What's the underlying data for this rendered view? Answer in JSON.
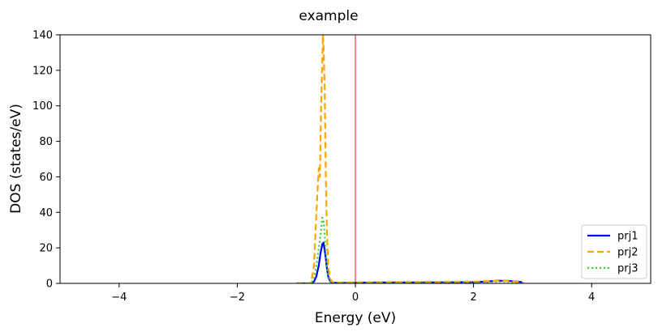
{
  "chart_data": {
    "type": "line",
    "title": "example",
    "xlabel": "Energy (eV)",
    "ylabel": "DOS (states/eV)",
    "xlim": [
      -5,
      5
    ],
    "ylim": [
      0,
      140
    ],
    "xticks": [
      -4,
      -2,
      0,
      2,
      4
    ],
    "xtick_labels": [
      "−4",
      "−2",
      "0",
      "2",
      "4"
    ],
    "yticks": [
      0,
      20,
      40,
      60,
      80,
      100,
      120,
      140
    ],
    "ytick_labels": [
      "0",
      "20",
      "40",
      "60",
      "80",
      "100",
      "120",
      "140"
    ],
    "grid": false,
    "legend_position": "bottom-right",
    "vline": {
      "x": 0,
      "color": "#e41a1c"
    },
    "series": [
      {
        "name": "prj1",
        "color": "#0000ff",
        "style": "solid",
        "x": [
          -1.0,
          -0.75,
          -0.7,
          -0.66,
          -0.62,
          -0.59,
          -0.56,
          -0.54,
          -0.52,
          -0.5,
          -0.48,
          -0.46,
          -0.43,
          -0.4,
          -0.35,
          -0.2,
          0.0,
          0.5,
          1.0,
          1.5,
          2.0,
          2.2,
          2.4,
          2.6,
          2.8,
          2.85
        ],
        "y": [
          0,
          0,
          1,
          4,
          10,
          17,
          22,
          23,
          19,
          14,
          8,
          4,
          1.5,
          0.5,
          0.3,
          0.3,
          0.4,
          0.5,
          0.5,
          0.6,
          0.7,
          1.0,
          1.5,
          1.4,
          0.8,
          0
        ]
      },
      {
        "name": "prj2",
        "color": "#ffa500",
        "style": "dashed",
        "x": [
          -1.0,
          -0.75,
          -0.7,
          -0.66,
          -0.62,
          -0.6,
          -0.58,
          -0.56,
          -0.55,
          -0.54,
          -0.52,
          -0.5,
          -0.48,
          -0.46,
          -0.43,
          -0.4,
          -0.35,
          -0.2,
          0.0,
          0.5,
          1.0,
          1.5,
          2.0,
          2.2,
          2.4,
          2.6,
          2.8,
          2.85
        ],
        "y": [
          0,
          0,
          10,
          40,
          65,
          60,
          100,
          125,
          140,
          135,
          110,
          60,
          28,
          10,
          3,
          1,
          0.5,
          0.5,
          0.6,
          0.7,
          0.8,
          0.9,
          1.0,
          1.2,
          1.4,
          1.3,
          0.7,
          0
        ]
      },
      {
        "name": "prj3",
        "color": "#32cd32",
        "style": "dotted",
        "x": [
          -1.0,
          -0.75,
          -0.7,
          -0.66,
          -0.62,
          -0.6,
          -0.58,
          -0.56,
          -0.54,
          -0.52,
          -0.5,
          -0.48,
          -0.46,
          -0.43,
          -0.4,
          -0.35,
          -0.2,
          0.0,
          1.0,
          2.0,
          2.85
        ],
        "y": [
          0,
          0,
          3,
          10,
          20,
          24,
          30,
          37,
          35,
          28,
          17,
          8,
          3,
          1,
          0.3,
          0.2,
          0.2,
          0.2,
          0.2,
          0.2,
          0
        ]
      }
    ]
  }
}
